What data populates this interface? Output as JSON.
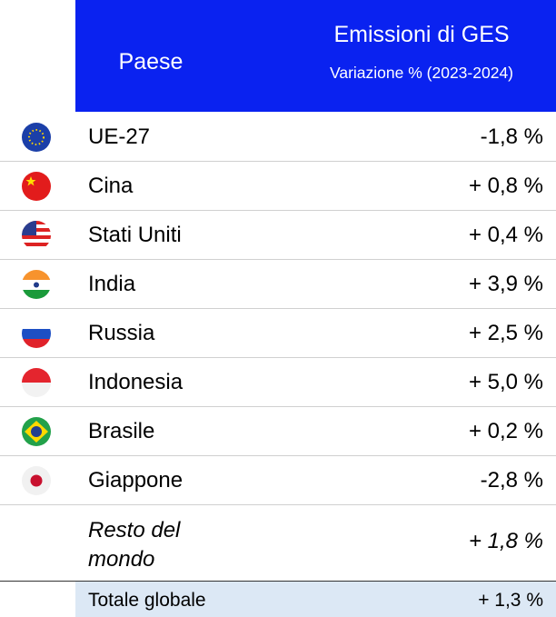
{
  "header": {
    "country": "Paese",
    "title": "Emissioni di GES",
    "subtitle": "Variazione % (2023-2024)"
  },
  "table": {
    "rows": [
      [
        "UE-27",
        "-1,8 %"
      ],
      [
        "Cina",
        "+ 0,8 %"
      ],
      [
        "Stati Uniti",
        "+ 0,4 %"
      ],
      [
        "India",
        "+ 3,9 %"
      ],
      [
        "Russia",
        "+ 2,5 %"
      ],
      [
        "Indonesia",
        "+ 5,0 %"
      ],
      [
        "Brasile",
        "+ 0,2 %"
      ],
      [
        "Giappone",
        "-2,8 %"
      ],
      [
        "Resto del mondo",
        "+ 1,8 %"
      ]
    ]
  },
  "total": {
    "label": "Totale globale",
    "value": "+ 1,3 %"
  }
}
